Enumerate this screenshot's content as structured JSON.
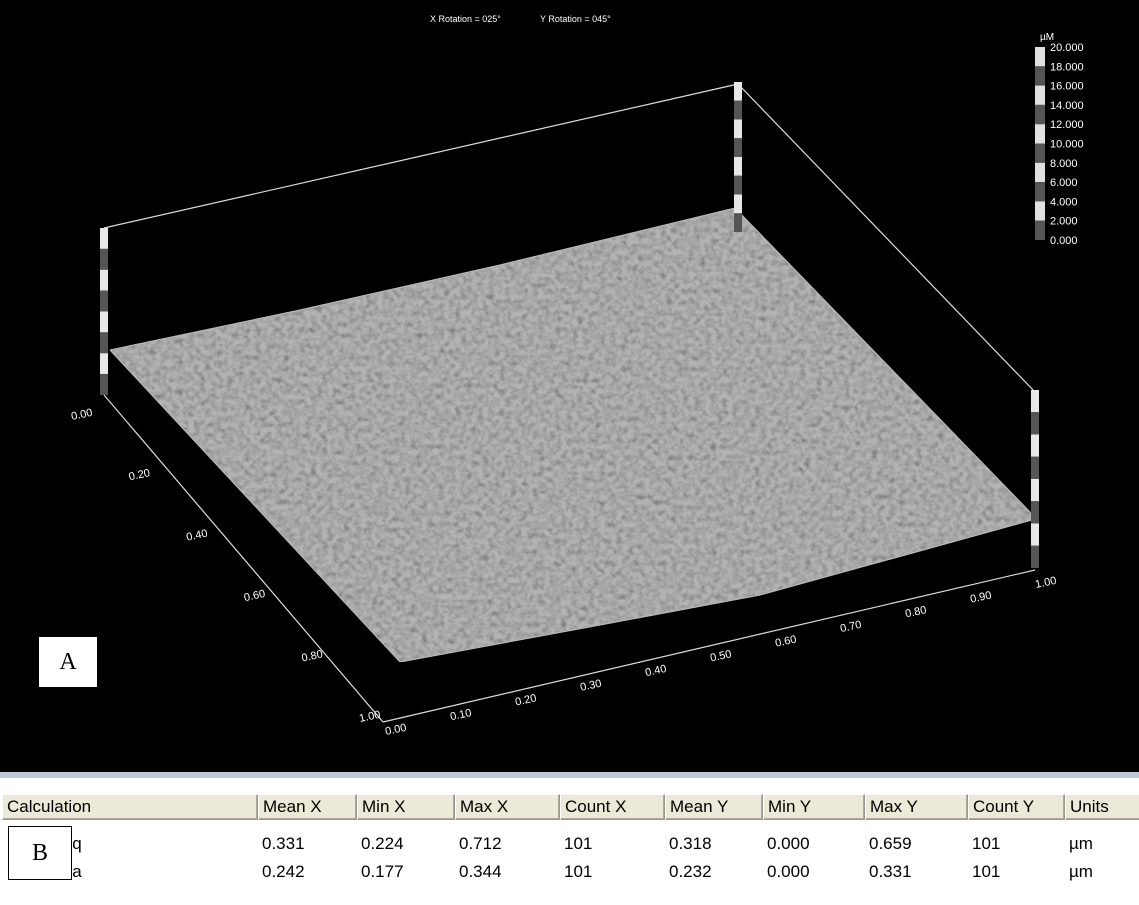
{
  "viewer": {
    "rotation": [
      "X Rotation = 025°",
      "Y Rotation = 045°"
    ],
    "scale_unit": "µM",
    "scale_labels": [
      "20.000",
      "18.000",
      "16.000",
      "14.000",
      "12.000",
      "10.000",
      "8.000",
      "6.000",
      "4.000",
      "2.000",
      "0.000"
    ],
    "left_axis_labels": [
      "0.00",
      "0.20",
      "0.40",
      "0.60",
      "0.80",
      "1.00"
    ],
    "right_axis_labels": [
      "0.00",
      "0.10",
      "0.20",
      "0.30",
      "0.40",
      "0.50",
      "0.60",
      "0.70",
      "0.80",
      "0.90",
      "1.00"
    ],
    "panel_label": "A"
  },
  "table": {
    "headers": [
      "Calculation",
      "Mean X",
      "Min X",
      "Max X",
      "Count X",
      "Mean Y",
      "Min Y",
      "Max Y",
      "Count Y",
      "Units"
    ],
    "rows": [
      [
        "ISO Rq",
        "0.331",
        "0.224",
        "0.712",
        "101",
        "0.318",
        "0.000",
        "0.659",
        "101",
        "µm"
      ],
      [
        "ISO Ra",
        "0.242",
        "0.177",
        "0.344",
        "101",
        "0.232",
        "0.000",
        "0.331",
        "101",
        "µm"
      ]
    ],
    "panel_label": "B"
  }
}
